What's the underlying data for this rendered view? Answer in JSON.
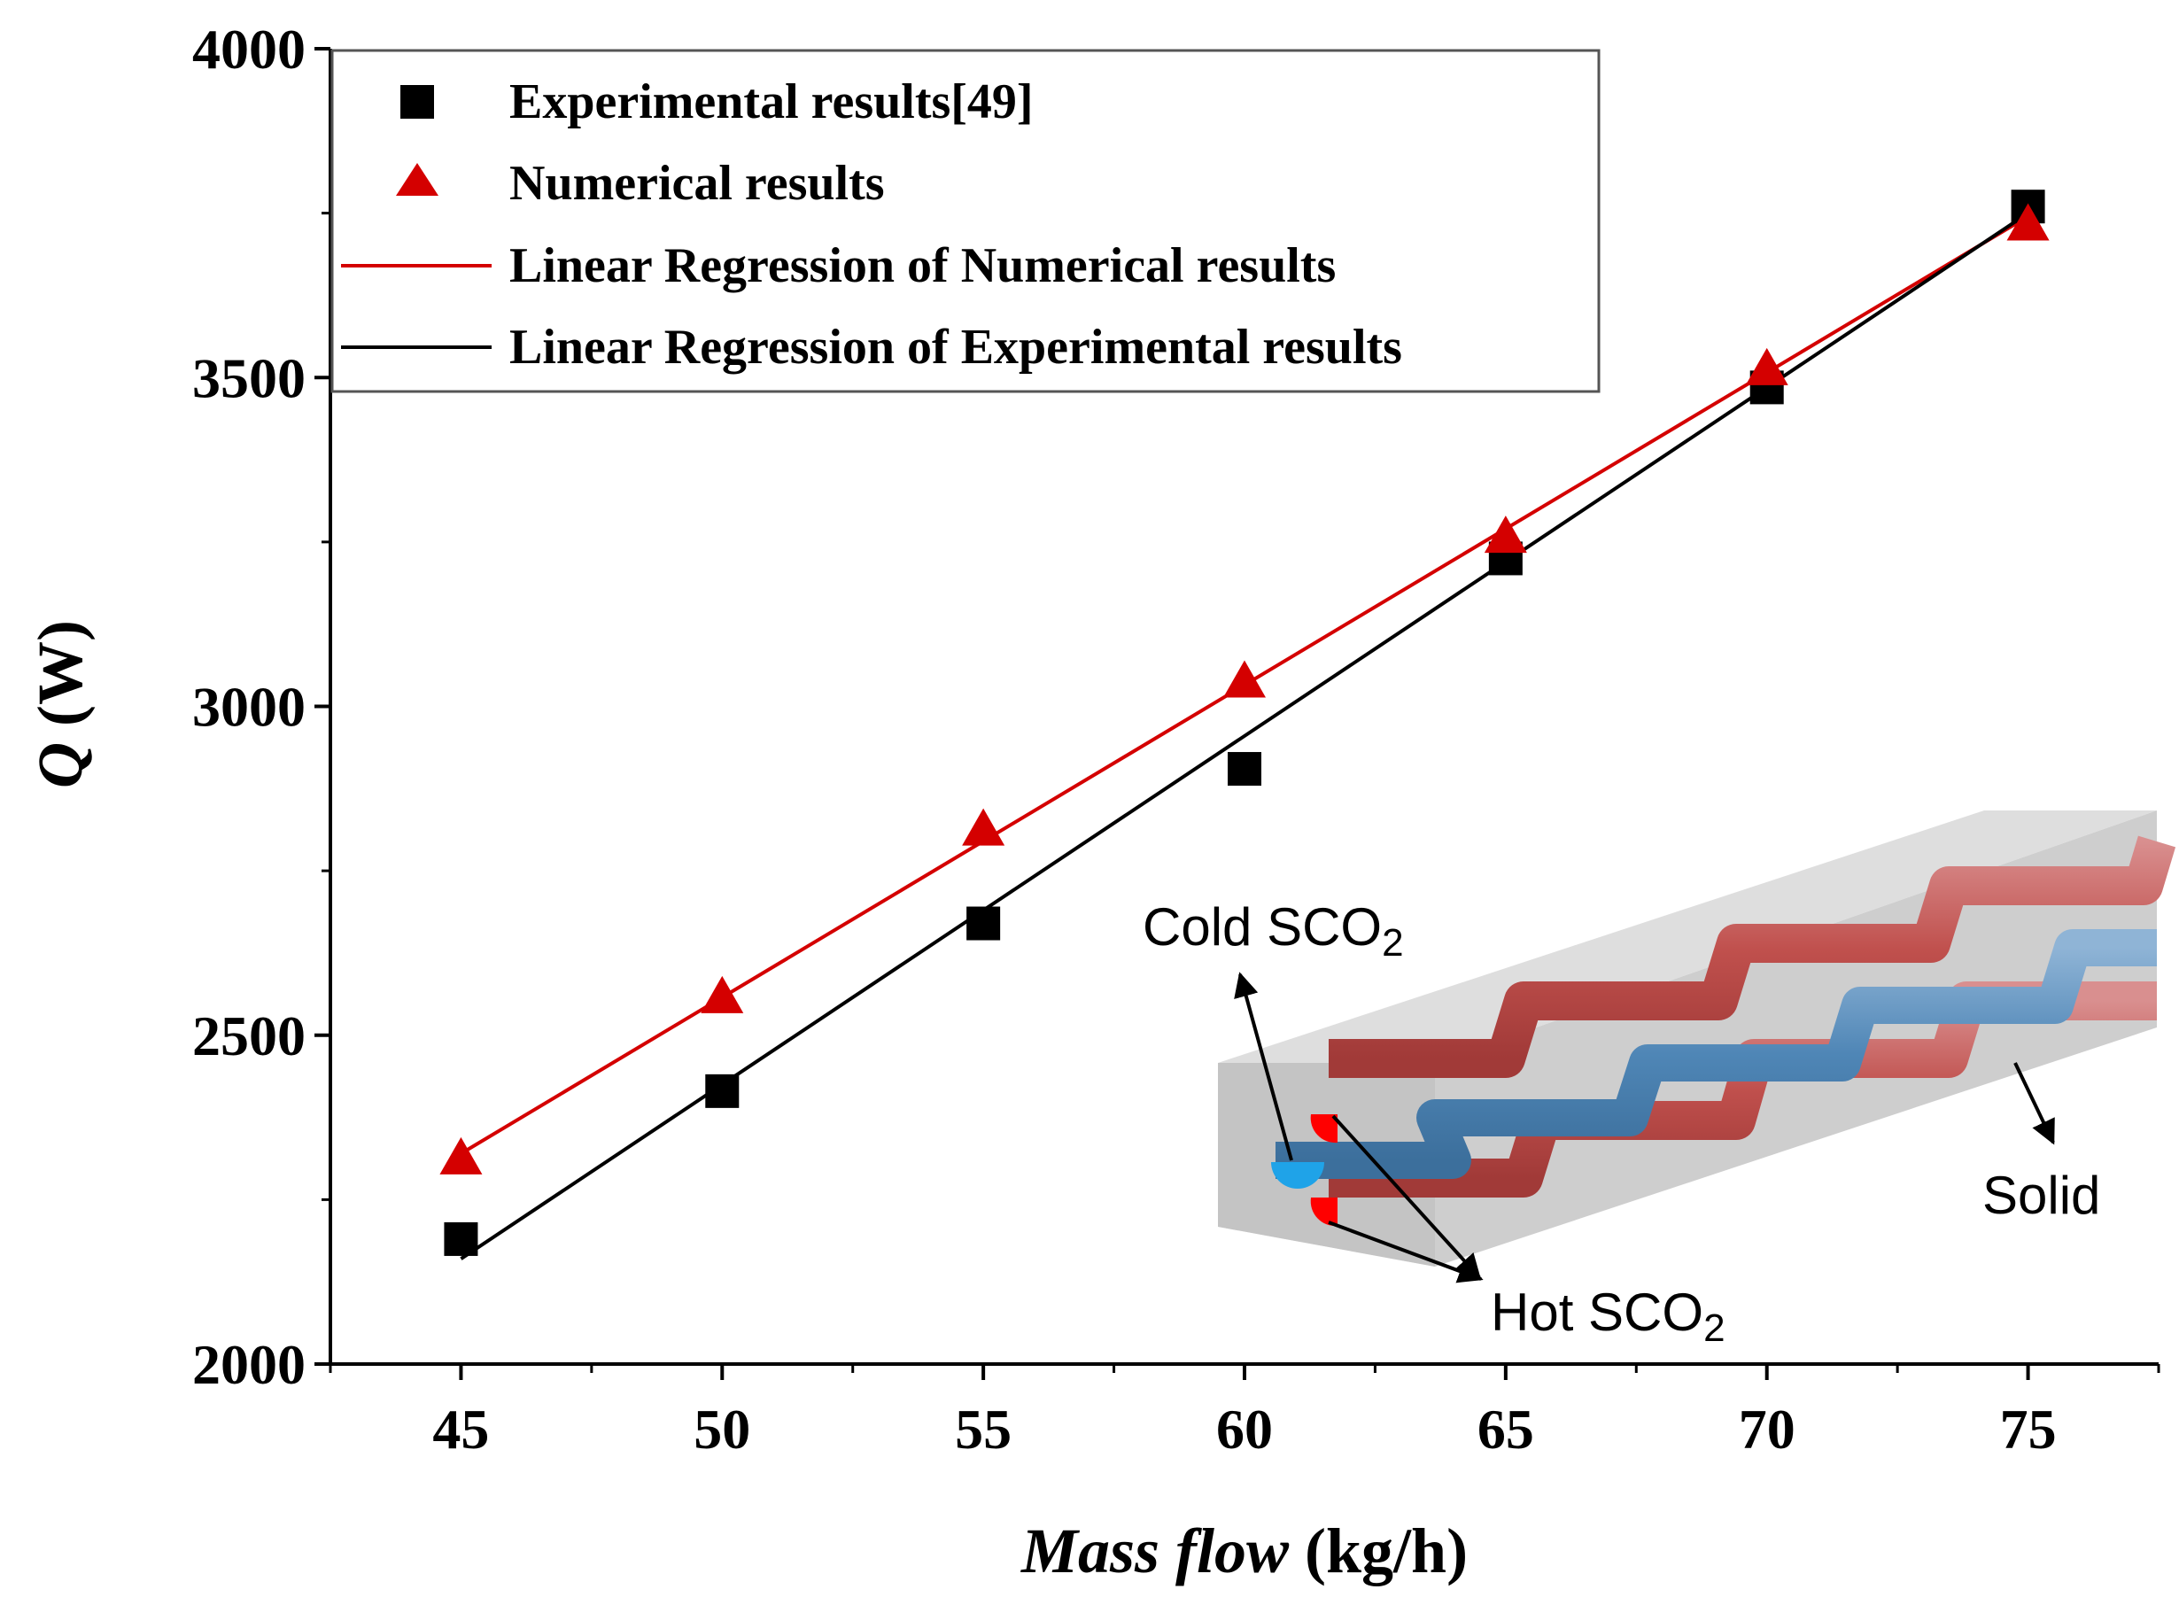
{
  "chart_data": {
    "type": "scatter",
    "title": "",
    "xlabel_italic": "Mass flow",
    "xlabel_unit": "(kg/h)",
    "ylabel_italic": "Q",
    "ylabel_unit": "(W)",
    "xlim": [
      42.5,
      77.5
    ],
    "ylim": [
      2000,
      4000
    ],
    "xticks": [
      45,
      50,
      55,
      60,
      65,
      70,
      75
    ],
    "yticks": [
      2000,
      2500,
      3000,
      3500,
      4000
    ],
    "series": [
      {
        "name": "Experimental results[49]",
        "marker": "square",
        "color": "#000000",
        "x": [
          45,
          50,
          55,
          60,
          65,
          70,
          75
        ],
        "y": [
          2190,
          2415,
          2670,
          2905,
          3225,
          3485,
          3760
        ]
      },
      {
        "name": "Numerical results",
        "marker": "triangle",
        "color": "#d40000",
        "x": [
          45,
          50,
          55,
          60,
          65,
          70,
          75
        ],
        "y": [
          2310,
          2555,
          2810,
          3035,
          3255,
          3510,
          3730
        ]
      },
      {
        "name": "Linear Regression of Numerical results",
        "marker": "line",
        "color": "#d40000",
        "x": [
          45,
          75
        ],
        "y": [
          2320,
          3745
        ]
      },
      {
        "name": "Linear Regression of Experimental results",
        "marker": "line",
        "color": "#000000",
        "x": [
          45,
          75
        ],
        "y": [
          2160,
          3750
        ]
      }
    ],
    "legend_position": "top-left",
    "annotations": {
      "cold_prefix": "Cold SCO",
      "cold_sub": "2",
      "hot_prefix": "Hot SCO",
      "hot_sub": "2",
      "solid": "Solid"
    }
  }
}
